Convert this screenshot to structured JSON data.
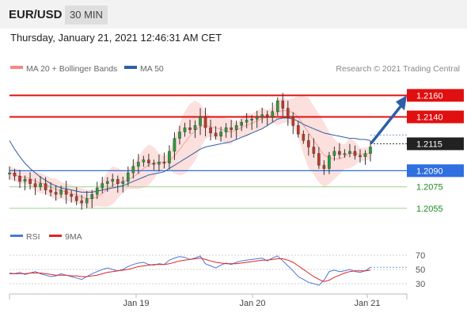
{
  "header": {
    "symbol": "EUR/USD",
    "timeframe": "30 MIN",
    "datetime": "Thursday, January 21, 2021 12:46:31 AM CET"
  },
  "legend": {
    "ma20_label": "MA 20 + Bollinger Bands",
    "ma50_label": "MA 50",
    "credit": "Research © 2021 Trading Central",
    "ma20_color": "#f28b82",
    "ma50_color": "#2d5fa8"
  },
  "rsi_legend": {
    "rsi_label": "RSI",
    "ma_label": "9MA",
    "rsi_color": "#4a78d6",
    "ma_color": "#e02424"
  },
  "chart_data": {
    "type": "candlestick",
    "symbol": "EUR/USD",
    "x_ticks": [
      "Jan 19",
      "Jan 20",
      "Jan 21"
    ],
    "price_range": [
      1.2035,
      1.2175
    ],
    "levels": [
      {
        "price": "1.2160",
        "value": 1.216,
        "style": "resistance",
        "color": "#e01010"
      },
      {
        "price": "1.2140",
        "value": 1.214,
        "style": "resistance",
        "color": "#e01010"
      },
      {
        "price": "1.2115",
        "value": 1.2115,
        "style": "current",
        "color": "#222222"
      },
      {
        "price": "1.2090",
        "value": 1.209,
        "style": "pivot",
        "color": "#2f6fe0"
      },
      {
        "price": "1.2075",
        "value": 1.2075,
        "style": "support",
        "color": "#1e8a1e"
      },
      {
        "price": "1.2055",
        "value": 1.2055,
        "style": "support",
        "color": "#1e8a1e"
      }
    ],
    "projection": {
      "from": 1.2115,
      "to": 1.216,
      "direction": "up"
    },
    "price_series": [
      1.2088,
      1.2085,
      1.208,
      1.2082,
      1.2078,
      1.2075,
      1.2078,
      1.2072,
      1.207,
      1.2068,
      1.2072,
      1.2068,
      1.2066,
      1.2062,
      1.206,
      1.2064,
      1.2068,
      1.2074,
      1.2078,
      1.208,
      1.2082,
      1.2078,
      1.208,
      1.2088,
      1.2094,
      1.2098,
      1.21,
      1.2097,
      1.2096,
      1.2098,
      1.2097,
      1.2108,
      1.212,
      1.2126,
      1.213,
      1.2128,
      1.2132,
      1.214,
      1.213,
      1.2125,
      1.2122,
      1.2126,
      1.213,
      1.2128,
      1.2132,
      1.2135,
      1.2137,
      1.2138,
      1.214,
      1.2142,
      1.214,
      1.2145,
      1.2155,
      1.2148,
      1.214,
      1.2132,
      1.2124,
      1.2118,
      1.2112,
      1.2106,
      1.2095,
      1.2092,
      1.2104,
      1.2108,
      1.2105,
      1.2106,
      1.2108,
      1.2104,
      1.2103,
      1.2106,
      1.2112
    ],
    "ma50_series": [
      1.2118,
      1.211,
      1.2103,
      1.2097,
      1.2092,
      1.2088,
      1.2084,
      1.2081,
      1.2078,
      1.2076,
      1.2074,
      1.2073,
      1.2072,
      1.2071,
      1.207,
      1.207,
      1.207,
      1.2071,
      1.2072,
      1.2073,
      1.2074,
      1.2075,
      1.2076,
      1.2078,
      1.208,
      1.2082,
      1.2084,
      1.2086,
      1.2087,
      1.2088,
      1.2089,
      1.2092,
      1.2095,
      1.2098,
      1.2101,
      1.2104,
      1.2107,
      1.211,
      1.2112,
      1.2113,
      1.2114,
      1.2115,
      1.2116,
      1.2117,
      1.2119,
      1.2121,
      1.2123,
      1.2125,
      1.2127,
      1.2129,
      1.2132,
      1.2135,
      1.2138,
      1.2139,
      1.2139,
      1.2138,
      1.2136,
      1.2133,
      1.2131,
      1.2129,
      1.2127,
      1.2125,
      1.2124,
      1.2123,
      1.2122,
      1.2121,
      1.212,
      1.212,
      1.2119,
      1.2119,
      1.2118
    ],
    "rsi_ticks": [
      "70",
      "50",
      "30"
    ],
    "rsi_range": [
      20,
      80
    ],
    "rsi_series": [
      45,
      44,
      46,
      43,
      45,
      47,
      44,
      42,
      40,
      41,
      44,
      42,
      40,
      38,
      36,
      40,
      44,
      47,
      50,
      52,
      50,
      48,
      50,
      54,
      57,
      59,
      60,
      57,
      56,
      58,
      57,
      63,
      66,
      68,
      67,
      64,
      66,
      69,
      58,
      55,
      52,
      56,
      59,
      57,
      60,
      62,
      63,
      64,
      65,
      66,
      62,
      66,
      69,
      62,
      55,
      48,
      40,
      36,
      32,
      30,
      28,
      35,
      47,
      49,
      47,
      48,
      50,
      47,
      46,
      48,
      53
    ],
    "rsi_ma_series": [
      44,
      44,
      44,
      44,
      45,
      45,
      45,
      44,
      43,
      42,
      42,
      42,
      41,
      41,
      40,
      40,
      41,
      42,
      44,
      46,
      47,
      48,
      49,
      50,
      52,
      54,
      55,
      56,
      57,
      57,
      57,
      58,
      60,
      62,
      63,
      64,
      65,
      66,
      64,
      62,
      60,
      59,
      58,
      58,
      58,
      59,
      60,
      61,
      62,
      63,
      63,
      64,
      65,
      65,
      63,
      60,
      55,
      50,
      45,
      40,
      36,
      33,
      35,
      39,
      42,
      45,
      47,
      48,
      48,
      48,
      49
    ]
  }
}
